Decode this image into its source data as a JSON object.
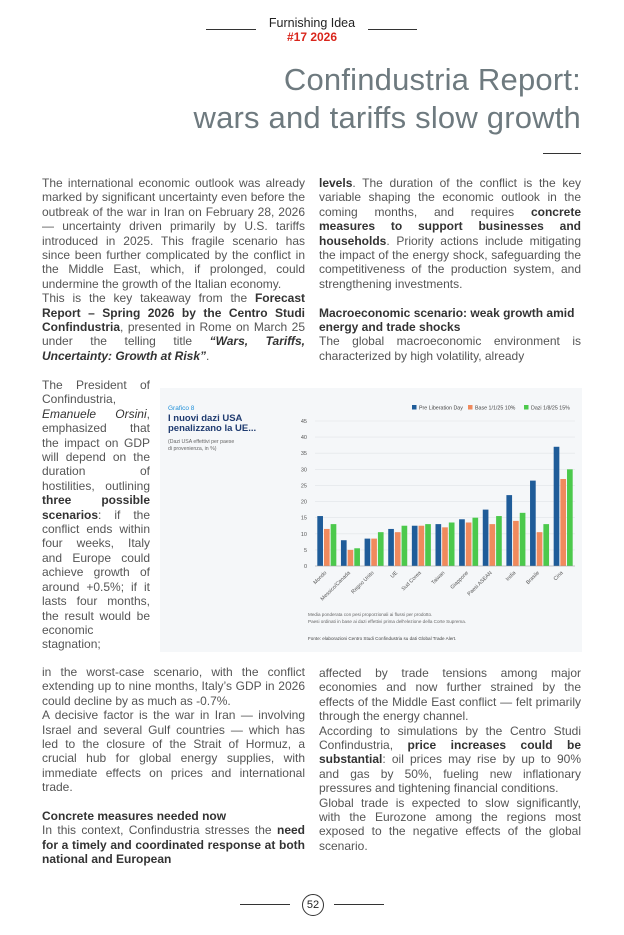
{
  "header": {
    "magazine": "Furnishing Idea",
    "issue": "#17 2026"
  },
  "title": [
    "Confindustria Report:",
    "wars and tariffs slow growth"
  ],
  "columns": {
    "left": [
      {
        "paragraphs": [
          {
            "runs": [
              "The international economic outlook was already marked by significant uncertainty even before the outbreak of the war in Iran on February 28, 2026 — uncertainty driven primarily by U.S. tariffs introduced in 2025. This fragile scenario has since been further complicated by the conflict in the Middle East, which, if prolonged, could undermine the growth of the Italian economy."
            ]
          },
          {
            "runs": [
              "This is the key takeaway from the ",
              {
                "text": "Forecast Report – Spring 2026 by the Centro Studi Confindustria",
                "style": "bold"
              },
              ", presented in Rome on March 25 under the telling title ",
              {
                "text": "“Wars, Tariffs, Uncertainty: Growth at Risk”",
                "style": "bold-italic"
              },
              "."
            ]
          }
        ]
      },
      {
        "paragraphs": [
          {
            "runs": [
              "The President of Confindustria, ",
              {
                "text": "Emanuele Orsini",
                "style": "italic"
              },
              ", emphasized that the impact on GDP will depend on the duration of hostilities, outlining ",
              {
                "text": "three possible scenarios",
                "style": "bold"
              },
              ": if the conflict ends within four weeks, Italy and Europe could achieve growth of around +0.5%; if it lasts four months, the result would be economic stagnation;"
            ]
          }
        ]
      },
      {
        "paragraphs": [
          {
            "runs": [
              "in the worst-case scenario, with the conflict extending up to nine months, Italy’s GDP in 2026 could decline by as much as -0.7%."
            ]
          },
          {
            "runs": [
              "A decisive factor is the war in Iran — involving Israel and several Gulf countries — which has led to the closure of the Strait of Hormuz, a crucial hub for global energy supplies, with immediate effects on prices and international trade."
            ]
          },
          {
            "heading": "Concrete measures needed now"
          },
          {
            "runs": [
              "In this context, Confindustria stresses the ",
              {
                "text": "need for a timely and coordinated response at both national and European",
                "style": "bold"
              }
            ]
          }
        ]
      }
    ],
    "right": [
      {
        "paragraphs": [
          {
            "runs": [
              {
                "text": "levels",
                "style": "bold"
              },
              ". The duration of the conflict is the key variable shaping the economic outlook in the coming months, and requires ",
              {
                "text": "concrete measures to support businesses and households",
                "style": "bold"
              },
              ". Priority actions include mitigating the impact of the energy shock, safeguarding the competitiveness of the production system, and strengthening investments."
            ]
          },
          {
            "heading": "Macroeconomic scenario: weak growth amid energy and trade shocks"
          },
          {
            "runs": [
              "The global macroeconomic environment is characterized by high volatility, already"
            ]
          }
        ]
      },
      {
        "paragraphs": [
          {
            "runs": [
              "affected by trade tensions among major economies and now further strained by the effects of the Middle East conflict — felt primarily through the energy channel."
            ]
          },
          {
            "runs": [
              "According to simulations by the Centro Studi Confindustria, ",
              {
                "text": "price increases could be substantial",
                "style": "bold"
              },
              ": oil prices may rise by up to 90% and gas by 50%, fueling new inflationary pressures and tightening financial conditions."
            ]
          },
          {
            "runs": [
              "Global trade is expected to slow significantly, with the Eurozone among the regions most exposed to the negative effects of the global scenario."
            ]
          }
        ]
      }
    ]
  },
  "chart_data": {
    "type": "bar",
    "label": "Grafico 8",
    "title_lines": [
      "I nuovi dazi USA",
      "penalizzano la UE..."
    ],
    "subtitle_lines": [
      "(Dazi USA effettivi per paese",
      "di provenienza, in %)"
    ],
    "categories": [
      "Mondo",
      "Messico/Canada",
      "Regno Unito",
      "UE",
      "Sud Corea",
      "Taiwan",
      "Giappone",
      "Paesi ASEAN",
      "India",
      "Brasile",
      "Cina"
    ],
    "series": [
      {
        "name": "Pre Liberation Day",
        "color": "#1f5c99",
        "values": [
          15.5,
          8,
          8.5,
          11.5,
          12.5,
          13,
          14.5,
          17.5,
          22,
          26.5,
          37
        ]
      },
      {
        "name": "Base 1/1/25 10%",
        "color": "#f08a5d",
        "values": [
          11.5,
          5,
          8.5,
          10.5,
          12.5,
          12,
          13.5,
          13,
          14,
          10.5,
          27
        ]
      },
      {
        "name": "Dazi 1/8/25 15%",
        "color": "#4cc94c",
        "values": [
          13,
          5.5,
          10.5,
          12.5,
          13,
          13.5,
          15,
          15.5,
          16.5,
          13,
          30
        ]
      }
    ],
    "ylim": [
      0,
      45
    ],
    "yticks": [
      0,
      5,
      10,
      15,
      20,
      25,
      30,
      35,
      40,
      45
    ],
    "grid": true,
    "notes": [
      "Media ponderata con pesi proporzionali ai flussi per prodotto.",
      "Paesi ordinati in base ai dazi effettivi prima dell'elezione della Corte Suprema."
    ],
    "source": "Fonte: elaborazioni Centro Studi Confindustria su dati Global Trade Alert."
  },
  "page_number": 52
}
